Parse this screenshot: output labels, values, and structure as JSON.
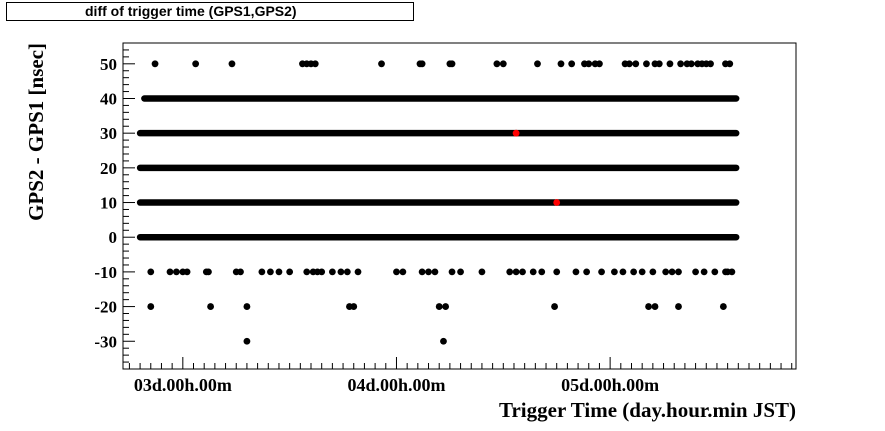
{
  "chart_data": {
    "type": "scatter",
    "title": "diff of trigger time (GPS1,GPS2)",
    "xlabel": "Trigger Time (day.hour.min JST)",
    "ylabel": "GPS2 - GPS1 [nsec]",
    "x_tick_labels": [
      "03d.00h.00m",
      "04d.00h.00m",
      "05d.00h.00m"
    ],
    "x_tick_values": [
      3.0,
      4.0,
      5.0
    ],
    "xlim": [
      2.72,
      5.87
    ],
    "ylim": [
      -38,
      56
    ],
    "y_ticks": [
      -30,
      -20,
      -10,
      0,
      10,
      20,
      30,
      40,
      50
    ],
    "grid": false,
    "colors": {
      "main": "#000000",
      "highlight": "#ff0000"
    },
    "series": [
      {
        "color": "#000000",
        "dense_bands": [
          {
            "y": 40,
            "x_start": 2.82,
            "x_end": 5.59
          },
          {
            "y": 30,
            "x_start": 2.8,
            "x_end": 5.59
          },
          {
            "y": 20,
            "x_start": 2.8,
            "x_end": 5.59
          },
          {
            "y": 10,
            "x_start": 2.8,
            "x_end": 5.59
          },
          {
            "y": 0,
            "x_start": 2.8,
            "x_end": 5.59
          }
        ],
        "points": [
          {
            "y": 50,
            "x": [
              2.87,
              3.06,
              3.23,
              3.56,
              3.58,
              3.6,
              3.62,
              3.93,
              4.11,
              4.12,
              4.25,
              4.26,
              4.47,
              4.5,
              4.66,
              4.77,
              4.82,
              4.88,
              4.9,
              4.93,
              4.95,
              5.07,
              5.09,
              5.12,
              5.17,
              5.21,
              5.23,
              5.28,
              5.33,
              5.36,
              5.38,
              5.41,
              5.43,
              5.45,
              5.47,
              5.54,
              5.56
            ]
          },
          {
            "y": -10,
            "x": [
              2.85,
              2.94,
              2.97,
              3.0,
              3.02,
              3.11,
              3.12,
              3.25,
              3.27,
              3.37,
              3.41,
              3.45,
              3.5,
              3.58,
              3.61,
              3.63,
              3.65,
              3.7,
              3.74,
              3.77,
              3.82,
              4.0,
              4.03,
              4.12,
              4.15,
              4.18,
              4.26,
              4.3,
              4.4,
              4.53,
              4.56,
              4.59,
              4.64,
              4.68,
              4.75,
              4.84,
              4.89,
              4.96,
              5.02,
              5.06,
              5.11,
              5.15,
              5.2,
              5.26,
              5.29,
              5.32,
              5.4,
              5.44,
              5.49,
              5.54,
              5.55,
              5.57
            ]
          },
          {
            "y": -20,
            "x": [
              2.85,
              3.13,
              3.3,
              3.78,
              3.8,
              4.2,
              4.23,
              4.74,
              5.18,
              5.21,
              5.32,
              5.53
            ]
          },
          {
            "y": -30,
            "x": [
              3.3,
              4.22
            ]
          }
        ]
      },
      {
        "color": "#ff0000",
        "points": [
          {
            "y": 30,
            "x": [
              4.56
            ]
          },
          {
            "y": 10,
            "x": [
              4.75
            ]
          }
        ]
      }
    ]
  }
}
